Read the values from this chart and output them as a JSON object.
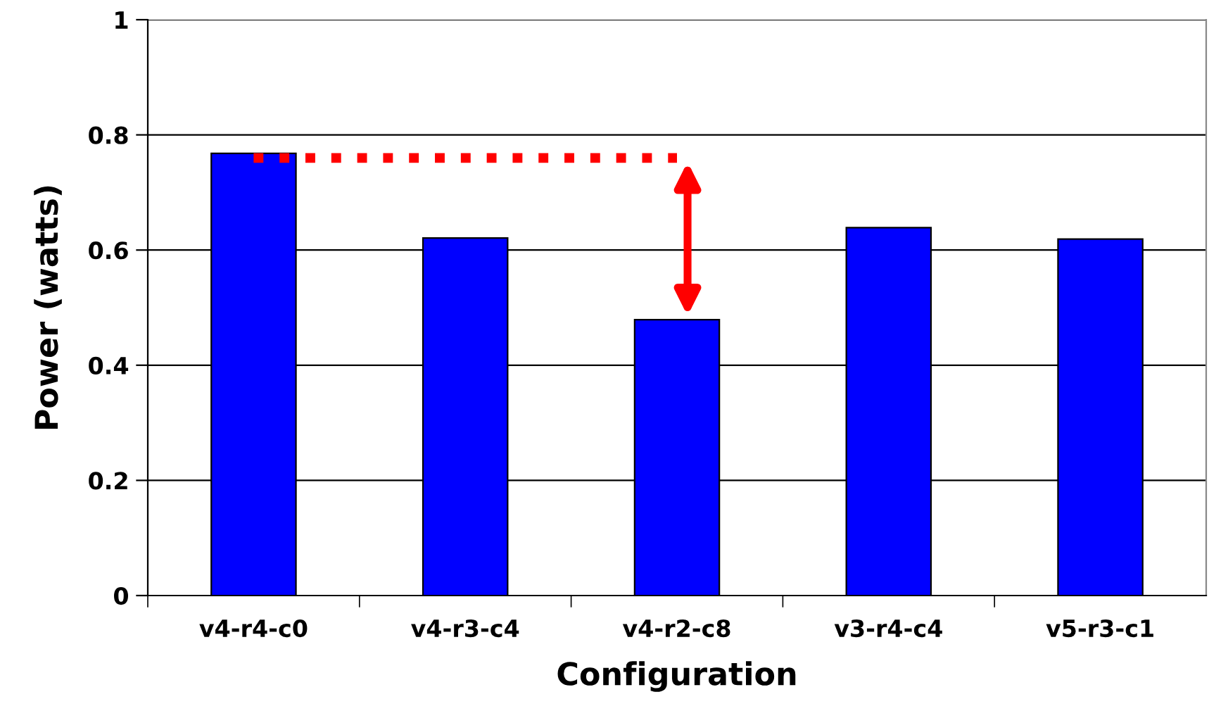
{
  "chart_data": {
    "type": "bar",
    "xlabel": "Configuration",
    "ylabel": "Power (watts)",
    "categories": [
      "v4-r4-c0",
      "v4-r3-c4",
      "v4-r2-c8",
      "v3-r4-c4",
      "v5-r3-c1"
    ],
    "series": [
      {
        "color": "#0000ff",
        "values": [
          0.768,
          0.621,
          0.479,
          0.639,
          0.619
        ]
      },
      {
        "type": "line",
        "color": "#ff0000",
        "line_style": "dotted",
        "marker": "none",
        "values": [
          0.76,
          0.76,
          0.76,
          null,
          null
        ]
      }
    ],
    "ylim": [
      0,
      1
    ],
    "yticks": [
      0,
      0.2,
      0.4,
      0.6,
      0.8,
      1
    ],
    "grid": "y",
    "legend": false
  }
}
